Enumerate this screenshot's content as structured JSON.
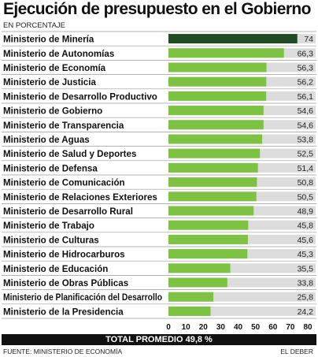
{
  "header": {
    "title": "Ejecución de presupuesto en el Gobierno",
    "subtitle": "EN PORCENTAJE"
  },
  "footer": {
    "total": "TOTAL PROMEDIO 49,8 %",
    "source": "FUENTE: MINISTERIO DE ECONOMÍA",
    "brand": "EL DEBER"
  },
  "colors": {
    "bar": "#7dc243",
    "highlight_bar": "#1f4a22",
    "track": "#dcdcdc",
    "separator": "#9a9a9a"
  },
  "chart_data": {
    "type": "bar",
    "orientation": "horizontal",
    "title": "Ejecución de presupuesto en el Gobierno",
    "subtitle": "EN PORCENTAJE",
    "xlim": [
      0,
      80
    ],
    "xticks": [
      0,
      10,
      20,
      30,
      40,
      50,
      60,
      70,
      80
    ],
    "decimal_separator": ",",
    "categories": [
      "Ministerio de Minería",
      "Ministerio de Autonomías",
      "Ministerio de Economía",
      "Ministerio de Justicia",
      "Ministerio de Desarrollo Productivo",
      "Ministerio de Gobierno",
      "Ministerio de Transparencia",
      "Ministerio de Aguas",
      "Ministerio de Salud y Deportes",
      "Ministerio de Defensa",
      "Ministerio de Comunicación",
      "Ministerio de Relaciones Exteriores",
      "Ministerio de Desarrollo Rural",
      "Ministerio de Trabajo",
      "Ministerio de Culturas",
      "Ministerio de Hidrocarburos",
      "Ministerio de Educación",
      "Ministerio de Obras Públicas",
      "Ministerio de Planificación del Desarrollo",
      "Ministerio de la Presidencia"
    ],
    "values": [
      74,
      66.3,
      56.3,
      56.2,
      56.1,
      54.6,
      54.6,
      53.8,
      52.5,
      51.4,
      50.8,
      50.5,
      48.9,
      45.8,
      45.6,
      45.3,
      35.5,
      33.8,
      25.8,
      24.2
    ],
    "highlight_index": 0
  }
}
